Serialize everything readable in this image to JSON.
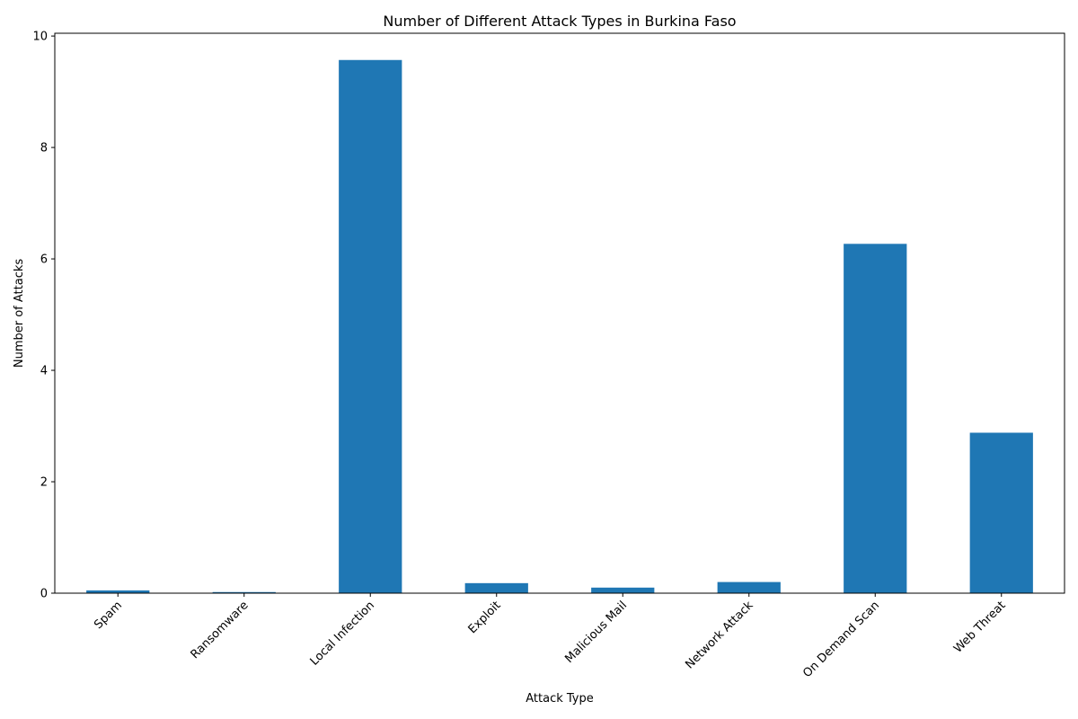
{
  "chart_data": {
    "type": "bar",
    "title": "Number of Different Attack Types in Burkina Faso",
    "xlabel": "Attack Type",
    "ylabel": "Number of Attacks",
    "categories": [
      "Spam",
      "Ransomware",
      "Local Infection",
      "Exploit",
      "Malicious Mail",
      "Network Attack",
      "On Demand Scan",
      "Web Threat"
    ],
    "values": [
      0.05,
      0.02,
      9.57,
      0.18,
      0.1,
      0.2,
      6.27,
      2.88
    ],
    "ylim": [
      0,
      10.05
    ],
    "yticks": [
      0,
      2,
      4,
      6,
      8,
      10
    ],
    "ytick_labels": [
      "0",
      "2",
      "4",
      "6",
      "8",
      "10"
    ],
    "grid": false,
    "legend": "none",
    "bar_color": "#1f77b4"
  }
}
